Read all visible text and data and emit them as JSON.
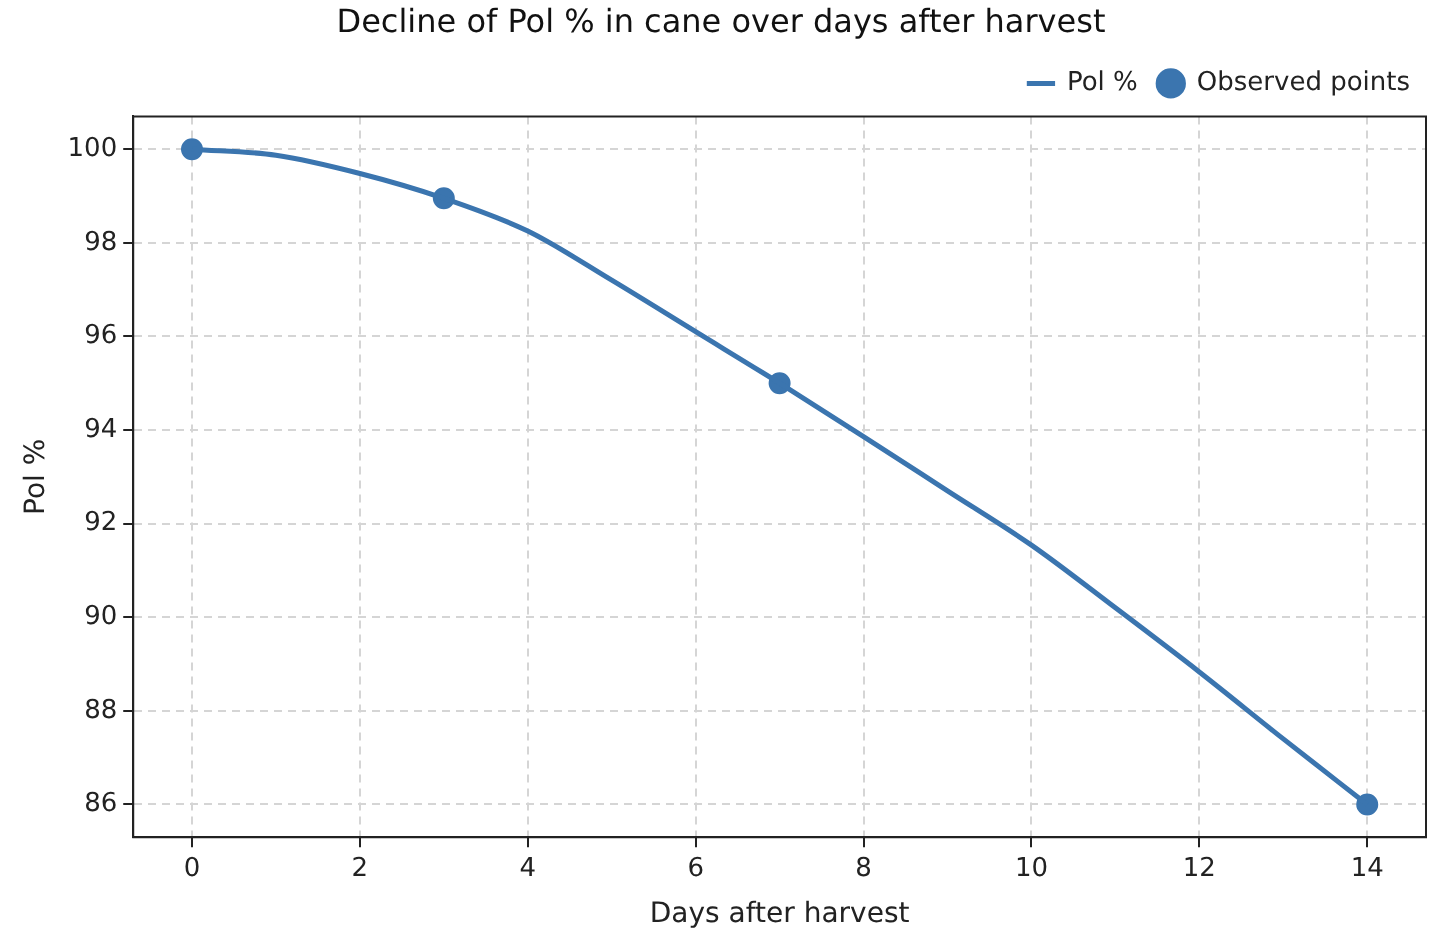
{
  "chart_data": {
    "type": "line",
    "title": "Decline of Pol % in cane over days after harvest",
    "xlabel": "Days after harvest",
    "ylabel": "Pol %",
    "xlim": [
      -0.7,
      14.7
    ],
    "xticks": [
      0,
      2,
      4,
      6,
      8,
      10,
      12,
      14
    ],
    "ylim": [
      85.3,
      100.7
    ],
    "yticks": [
      86,
      88,
      90,
      92,
      94,
      96,
      98,
      100
    ],
    "grid": true,
    "legend": "top right",
    "series": [
      {
        "name": "Pol %",
        "type": "line",
        "color": "#3b75af",
        "marker": "none",
        "x": [
          0,
          1,
          2,
          3,
          4,
          5,
          6,
          7,
          8,
          9,
          10,
          11,
          12,
          13,
          14
        ],
        "values": [
          100,
          99.87,
          99.48,
          98.95,
          98.25,
          97.2,
          96.1,
          95,
          93.86,
          92.7,
          91.54,
          90.2,
          88.83,
          87.4,
          86
        ]
      },
      {
        "name": "Observed points",
        "type": "scatter",
        "color": "#3b75af",
        "marker": "circle",
        "x": [
          0,
          3,
          7,
          14
        ],
        "values": [
          100,
          98.95,
          95,
          86
        ]
      }
    ]
  }
}
